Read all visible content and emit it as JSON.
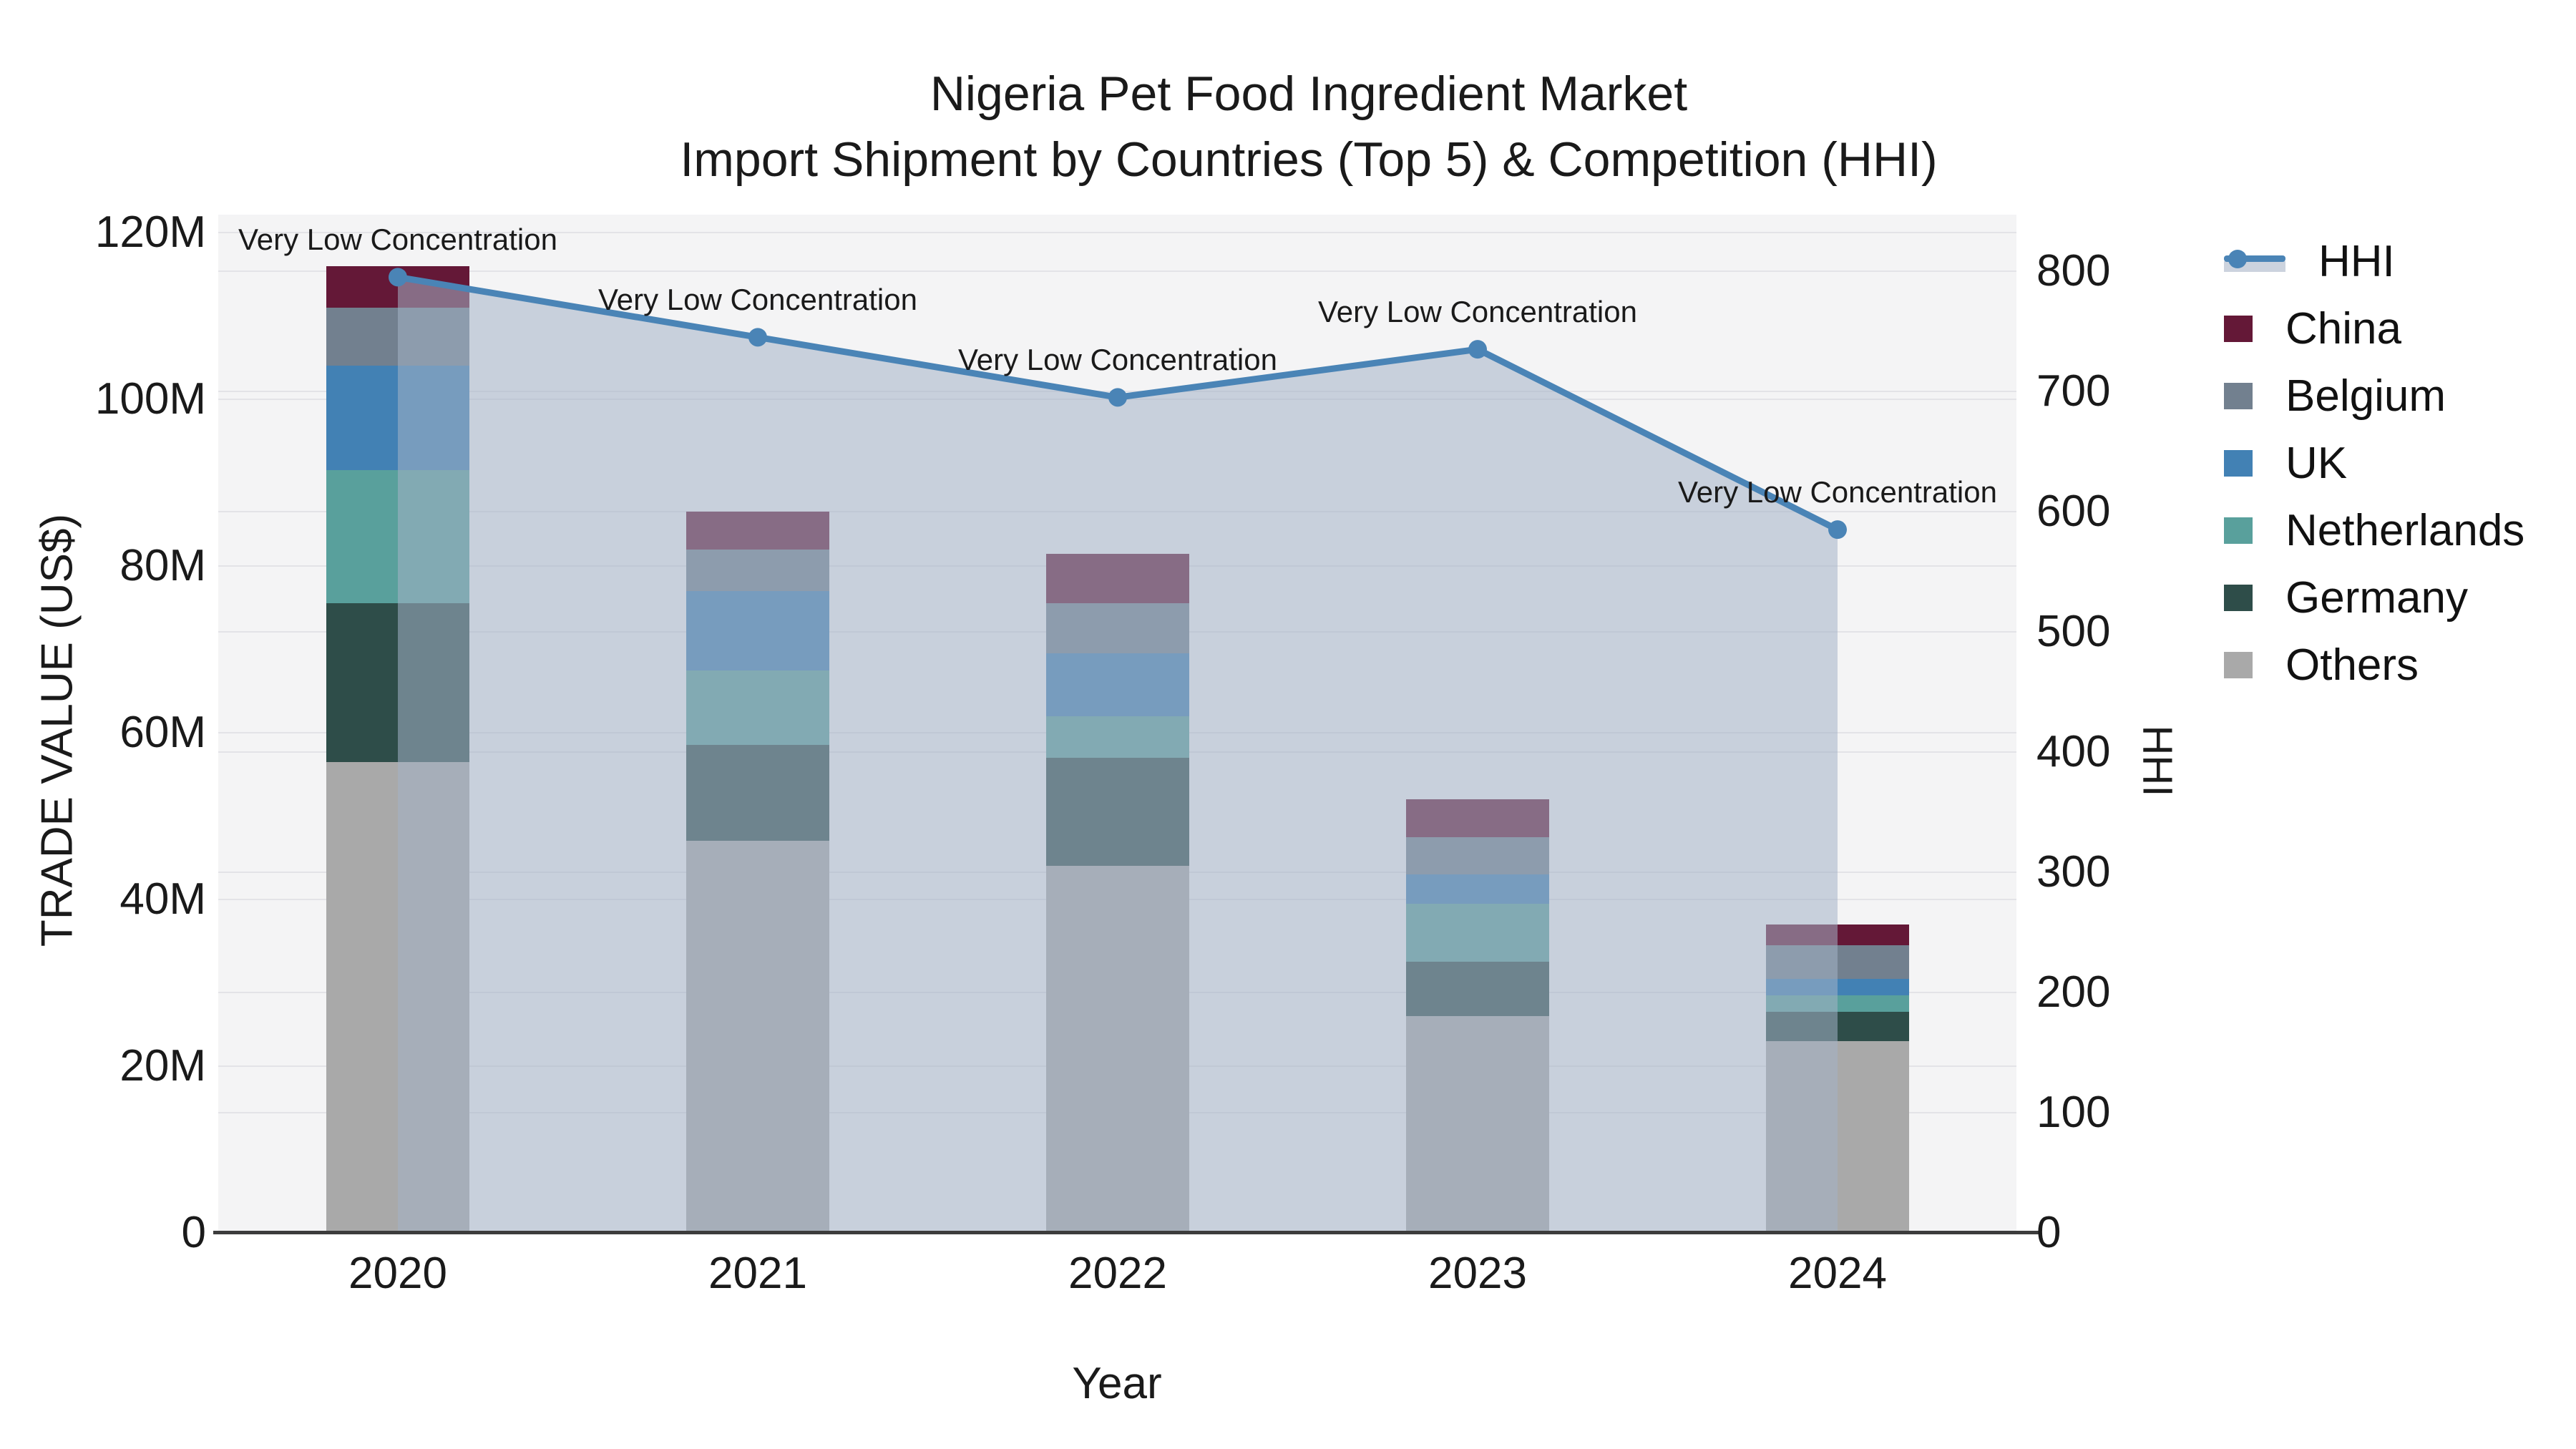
{
  "title": {
    "line1": "Nigeria Pet Food Ingredient Market",
    "line2": "Import Shipment by Countries (Top 5) & Competition (HHI)"
  },
  "axes": {
    "left": {
      "label": "TRADE VALUE (US$)",
      "tick_labels": [
        "0",
        "20M",
        "40M",
        "60M",
        "80M",
        "100M",
        "120M"
      ],
      "tick_values_millions": [
        0,
        20,
        40,
        60,
        80,
        100,
        120
      ]
    },
    "right": {
      "label": "HHI",
      "tick_labels": [
        "0",
        "100",
        "200",
        "300",
        "400",
        "500",
        "600",
        "700",
        "800"
      ],
      "tick_values": [
        0,
        100,
        200,
        300,
        400,
        500,
        600,
        700,
        800
      ]
    },
    "x": {
      "label": "Year",
      "tick_labels": [
        "2020",
        "2021",
        "2022",
        "2023",
        "2024"
      ]
    }
  },
  "chart_data": {
    "type": "bar",
    "subtype": "stacked-bars-with-line-overlay",
    "categories": [
      "2020",
      "2021",
      "2022",
      "2023",
      "2024"
    ],
    "bar_value_unit": "US$ millions",
    "stack_order_bottom_to_top": [
      "Others",
      "Germany",
      "Netherlands",
      "UK",
      "Belgium",
      "China"
    ],
    "series": [
      {
        "name": "Others",
        "color": "#a9a9a9",
        "values": [
          56.5,
          47.0,
          44.0,
          26.0,
          23.0
        ]
      },
      {
        "name": "Germany",
        "color": "#2e4d49",
        "values": [
          19.0,
          11.5,
          13.0,
          6.5,
          3.5
        ]
      },
      {
        "name": "Netherlands",
        "color": "#59a09c",
        "values": [
          16.0,
          9.0,
          5.0,
          7.0,
          2.0
        ]
      },
      {
        "name": "UK",
        "color": "#4281b4",
        "values": [
          12.5,
          9.5,
          7.5,
          3.5,
          2.0
        ]
      },
      {
        "name": "Belgium",
        "color": "#72808f",
        "values": [
          7.0,
          5.0,
          6.0,
          4.5,
          4.0
        ]
      },
      {
        "name": "China",
        "color": "#641837",
        "values": [
          5.0,
          4.5,
          6.0,
          4.5,
          2.5
        ]
      }
    ],
    "bar_totals_millions": [
      116.0,
      86.5,
      81.5,
      52.0,
      37.0
    ],
    "line": {
      "name": "HHI",
      "color": "#4a84b6",
      "area_fill_color": "rgba(164,178,198,0.55)",
      "values": [
        795,
        745,
        695,
        735,
        585
      ]
    },
    "annotations": [
      {
        "category": "2020",
        "label": "Very Low Concentration"
      },
      {
        "category": "2021",
        "label": "Very Low Concentration"
      },
      {
        "category": "2022",
        "label": "Very Low Concentration"
      },
      {
        "category": "2023",
        "label": "Very Low Concentration"
      },
      {
        "category": "2024",
        "label": "Very Low Concentration"
      }
    ],
    "ylim_left_millions": [
      0,
      122.15
    ],
    "ylim_right": [
      0,
      847
    ],
    "grid": true,
    "legend_position": "right"
  },
  "legend": {
    "items": [
      {
        "label": "HHI",
        "type": "line",
        "color": "#4a84b6"
      },
      {
        "label": "China",
        "type": "swatch",
        "color": "#641837"
      },
      {
        "label": "Belgium",
        "type": "swatch",
        "color": "#72808f"
      },
      {
        "label": "UK",
        "type": "swatch",
        "color": "#4281b4"
      },
      {
        "label": "Netherlands",
        "type": "swatch",
        "color": "#59a09c"
      },
      {
        "label": "Germany",
        "type": "swatch",
        "color": "#2e4d49"
      },
      {
        "label": "Others",
        "type": "swatch",
        "color": "#a9a9a9"
      }
    ]
  }
}
